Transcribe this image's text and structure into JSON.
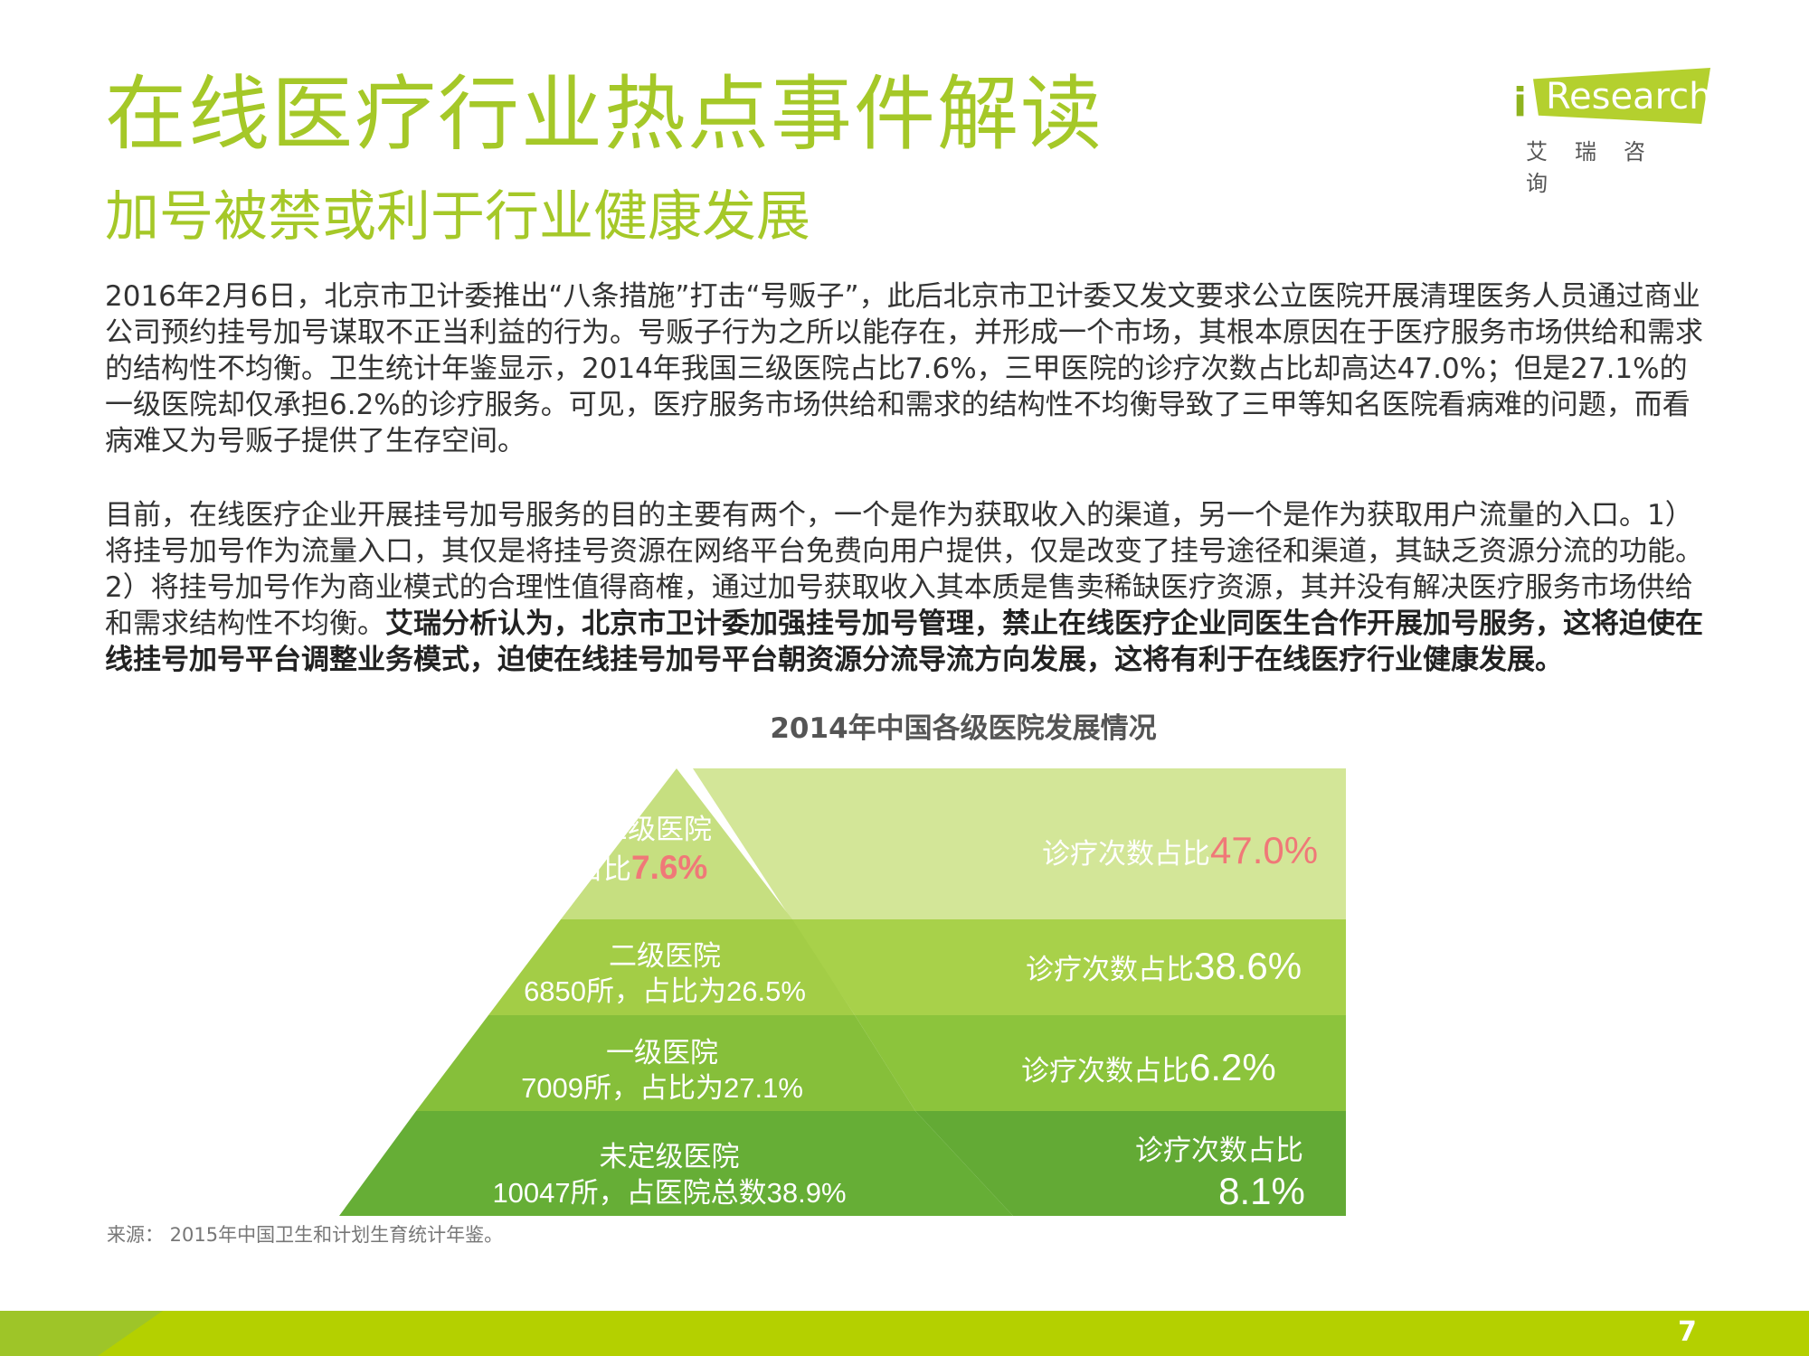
{
  "header": {
    "title": "在线医疗行业热点事件解读",
    "subtitle": "加号被禁或利于行业健康发展"
  },
  "logo": {
    "brand": "Research",
    "brand_prefix": "i",
    "cn": "艾瑞咨询"
  },
  "body": {
    "p1": "2016年2月6日，北京市卫计委推出“八条措施”打击“号贩子”，此后北京市卫计委又发文要求公立医院开展清理医务人员通过商业公司预约挂号加号谋取不正当利益的行为。号贩子行为之所以能存在，并形成一个市场，其根本原因在于医疗服务市场供给和需求的结构性不均衡。卫生统计年鉴显示，2014年我国三级医院占比7.6%，三甲医院的诊疗次数占比却高达47.0%；但是27.1%的一级医院却仅承担6.2%的诊疗服务。可见，医疗服务市场供给和需求的结构性不均衡导致了三甲等知名医院看病难的问题，而看病难又为号贩子提供了生存空间。",
    "p2_normal": "目前，在线医疗企业开展挂号加号服务的目的主要有两个，一个是作为获取收入的渠道，另一个是作为获取用户流量的入口。1）将挂号加号作为流量入口，其仅是将挂号资源在网络平台免费向用户提供，仅是改变了挂号途径和渠道，其缺乏资源分流的功能。2）将挂号加号作为商业模式的合理性值得商榷，通过加号获取收入其本质是售卖稀缺医疗资源，其并没有解决医疗服务市场供给和需求结构性不均衡。",
    "p2_bold": "艾瑞分析认为，北京市卫计委加强挂号加号管理，禁止在线医疗企业同医生合作开展加号服务，这将迫使在线挂号加号平台调整业务模式，迫使在线挂号加号平台朝资源分流导流方向发展，这将有利于在线医疗行业健康发展。"
  },
  "chart_title": "2014年中国各级医院发展情况",
  "chart_data": {
    "type": "table",
    "title": "2014年中国各级医院发展情况",
    "levels": [
      {
        "name": "三级医院",
        "count": null,
        "share_text": "占比",
        "share": "7.6%",
        "visits_label": "诊疗次数占比",
        "visits": "47.0%"
      },
      {
        "name": "二级医院",
        "count": "6850所",
        "share_text": "6850所，占比为26.5%",
        "share": "26.5%",
        "visits_label": "诊疗次数占比",
        "visits": "38.6%"
      },
      {
        "name": "一级医院",
        "count": "7009所",
        "share_text": "7009所，占比为27.1%",
        "share": "27.1%",
        "visits_label": "诊疗次数占比",
        "visits": "6.2%"
      },
      {
        "name": "未定级医院",
        "count": "10047所",
        "share_text": "10047所，占医院总数38.9%",
        "share": "38.9%",
        "visits_label": "诊疗次数占比",
        "visits": "8.1%"
      }
    ],
    "colors": {
      "tier1_left": "#c6df80",
      "tier1_right": "#d3e698",
      "tier2_left": "#a3cd46",
      "tier2_right": "#a8d14a",
      "tier3_left": "#86bf3a",
      "tier3_right": "#8cc43c",
      "tier4_left": "#66ae36",
      "tier4_right": "#63aa35",
      "highlight": "#f07878"
    }
  },
  "footer": {
    "source": "来源： 2015年中国卫生和计划生育统计年鉴。",
    "page": "7"
  }
}
